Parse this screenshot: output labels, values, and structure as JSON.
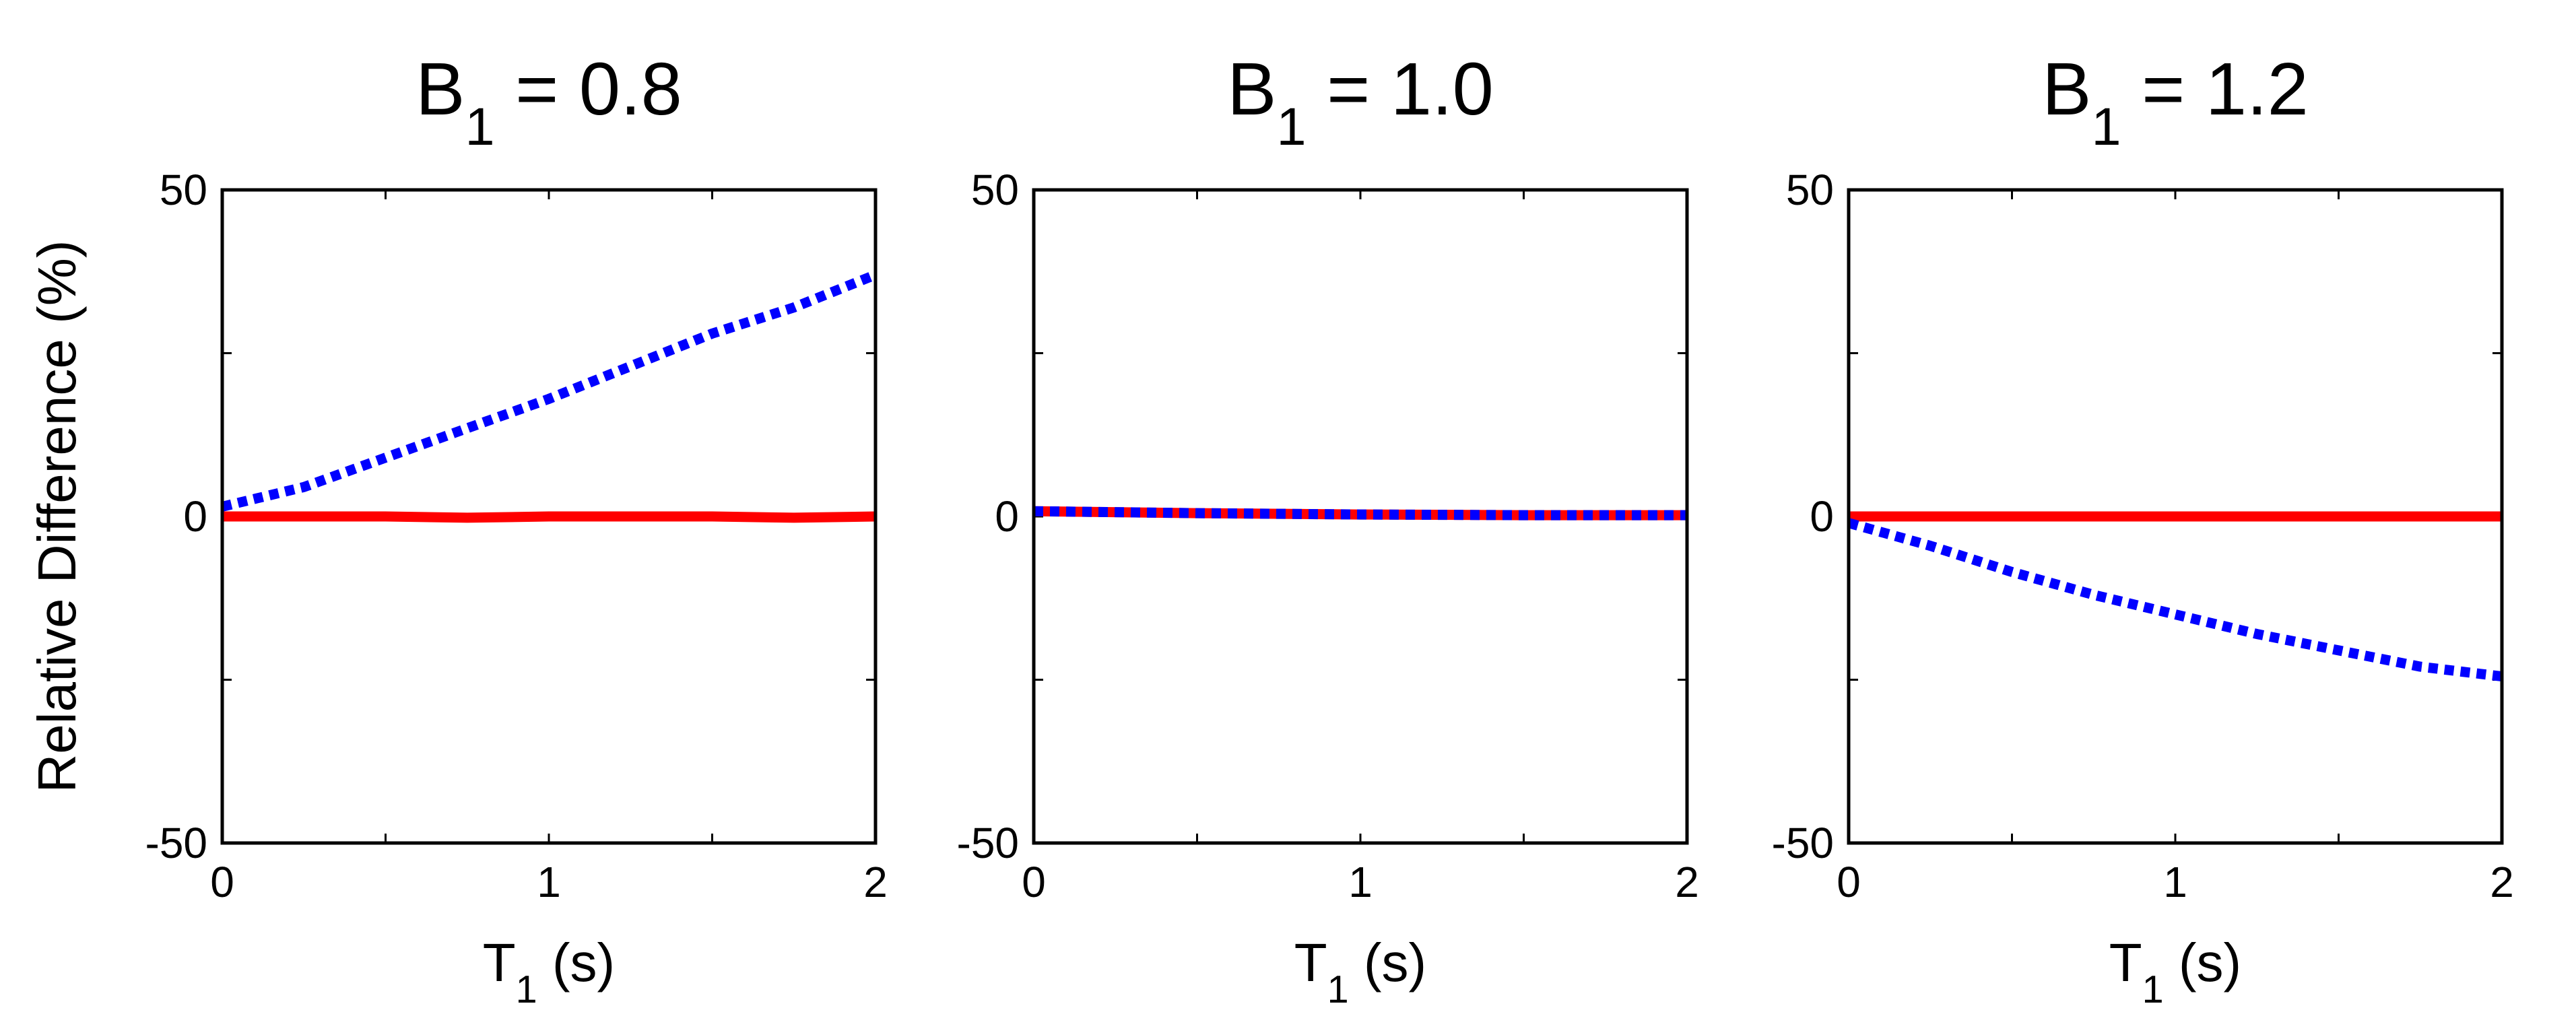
{
  "chart_data": [
    {
      "type": "line",
      "title": {
        "main": "B",
        "sub": "1",
        "rest": " = 0.8"
      },
      "xlabel": {
        "main": "T",
        "sub": "1",
        "rest": " (s)"
      },
      "ylabel": "Relative Difference (%)",
      "xlim": [
        0,
        2
      ],
      "ylim": [
        -50,
        50
      ],
      "xticks": [
        "0",
        "1",
        "2"
      ],
      "yticks": [
        "-50",
        "0",
        "50"
      ],
      "grid": false,
      "series": [
        {
          "color": "#ff0000",
          "style": "solid",
          "x": [
            0,
            0.25,
            0.5,
            0.75,
            1.0,
            1.25,
            1.5,
            1.75,
            2.0
          ],
          "y": [
            0,
            0,
            0,
            -0.2,
            0,
            0,
            0,
            -0.2,
            0
          ]
        },
        {
          "color": "#0000ff",
          "style": "dotted",
          "x": [
            0,
            0.25,
            0.5,
            0.75,
            1.0,
            1.25,
            1.5,
            1.75,
            2.0
          ],
          "y": [
            1.5,
            4.5,
            9,
            13.5,
            18,
            23,
            28,
            32,
            37
          ]
        }
      ]
    },
    {
      "type": "line",
      "title": {
        "main": "B",
        "sub": "1",
        "rest": " = 1.0"
      },
      "xlabel": {
        "main": "T",
        "sub": "1",
        "rest": " (s)"
      },
      "ylabel": "",
      "xlim": [
        0,
        2
      ],
      "ylim": [
        -50,
        50
      ],
      "xticks": [
        "0",
        "1",
        "2"
      ],
      "yticks": [
        "-50",
        "0",
        "50"
      ],
      "grid": false,
      "series": [
        {
          "color": "#ff0000",
          "style": "solid",
          "x": [
            0,
            0.5,
            1.0,
            1.5,
            2.0
          ],
          "y": [
            0.8,
            0.5,
            0.3,
            0.2,
            0.2
          ]
        },
        {
          "color": "#0000ff",
          "style": "dotted",
          "x": [
            0,
            0.5,
            1.0,
            1.5,
            2.0
          ],
          "y": [
            0.8,
            0.5,
            0.3,
            0.2,
            0.2
          ]
        }
      ]
    },
    {
      "type": "line",
      "title": {
        "main": "B",
        "sub": "1",
        "rest": " = 1.2"
      },
      "xlabel": {
        "main": "T",
        "sub": "1",
        "rest": " (s)"
      },
      "ylabel": "",
      "xlim": [
        0,
        2
      ],
      "ylim": [
        -50,
        50
      ],
      "xticks": [
        "0",
        "1",
        "2"
      ],
      "yticks": [
        "-50",
        "0",
        "50"
      ],
      "grid": false,
      "series": [
        {
          "color": "#ff0000",
          "style": "solid",
          "x": [
            0,
            0.25,
            0.5,
            0.75,
            1.0,
            1.25,
            1.5,
            1.75,
            2.0
          ],
          "y": [
            0,
            0,
            0,
            0,
            0,
            0,
            0,
            0,
            0
          ]
        },
        {
          "color": "#0000ff",
          "style": "dotted",
          "x": [
            0,
            0.25,
            0.5,
            0.75,
            1.0,
            1.25,
            1.5,
            1.75,
            2.0
          ],
          "y": [
            -1,
            -4.5,
            -8.5,
            -12,
            -15,
            -18,
            -20.5,
            -23,
            -24.5
          ]
        }
      ]
    }
  ]
}
